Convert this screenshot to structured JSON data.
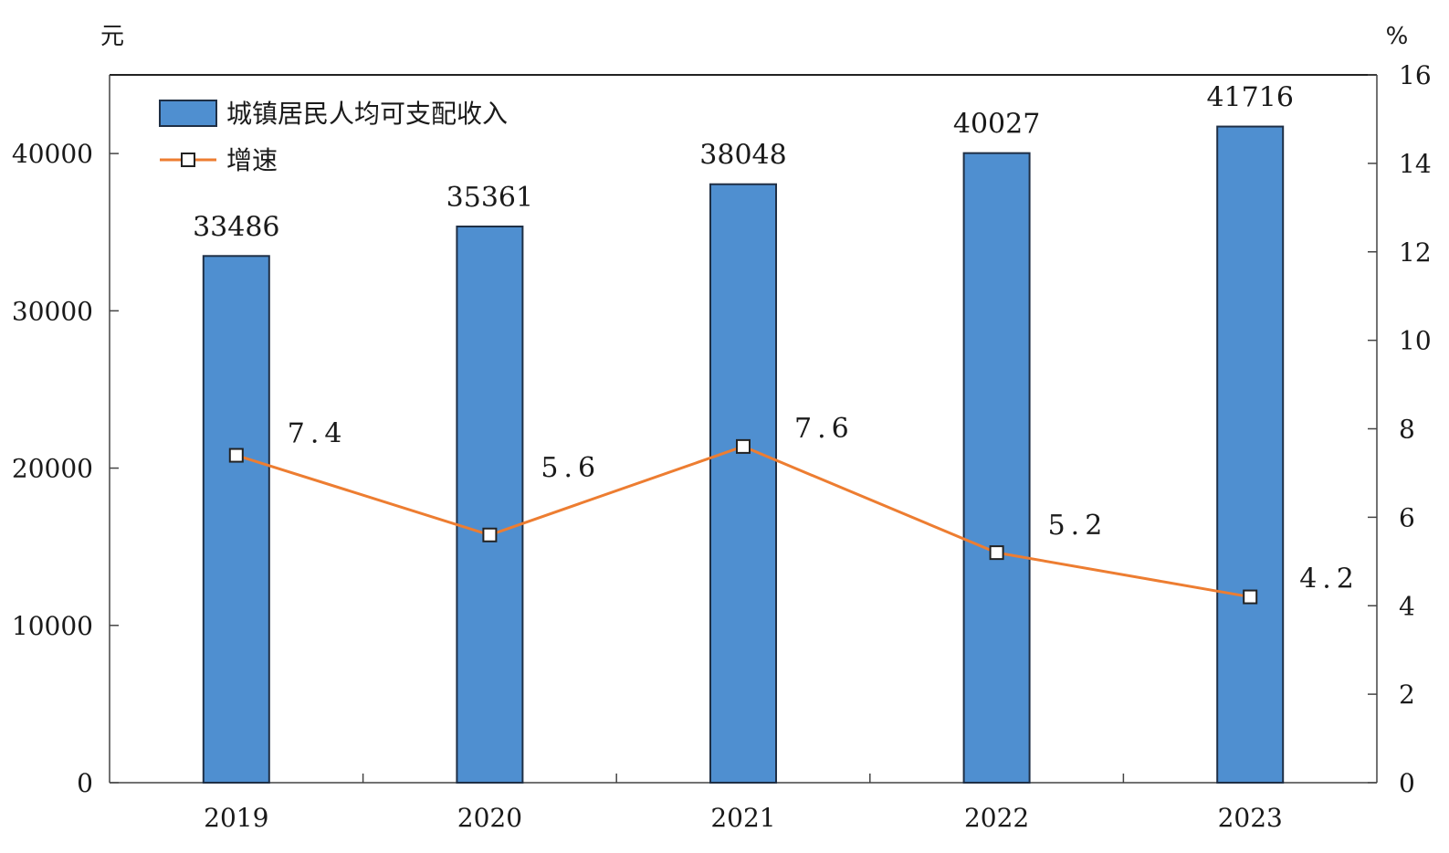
{
  "chart_data": {
    "type": "bar",
    "categories": [
      "2019",
      "2020",
      "2021",
      "2022",
      "2023"
    ],
    "y_unit_left": "元",
    "y_unit_right": "%",
    "ylim_left": [
      0,
      45000
    ],
    "ylim_right": [
      0,
      16
    ],
    "yticks_left": [
      "0",
      "10000",
      "20000",
      "30000",
      "40000"
    ],
    "yticks_right": [
      "0",
      "2",
      "4",
      "6",
      "8",
      "10",
      "12",
      "14",
      "16"
    ],
    "series": [
      {
        "name": "城镇居民人均可支配收入",
        "type": "bar",
        "axis": "left",
        "color": "#4f8fd0",
        "values": [
          33486,
          35361,
          38048,
          40027,
          41716
        ],
        "labels": [
          "33486",
          "35361",
          "38048",
          "40027",
          "41716"
        ]
      },
      {
        "name": "增速",
        "type": "line",
        "axis": "right",
        "color": "#ed7d31",
        "values": [
          7.4,
          5.6,
          7.6,
          5.2,
          4.2
        ],
        "labels": [
          "7.4",
          "5.6",
          "7.6",
          "5.2",
          "4.2"
        ]
      }
    ],
    "legend_position": "top-left",
    "grid": false
  }
}
